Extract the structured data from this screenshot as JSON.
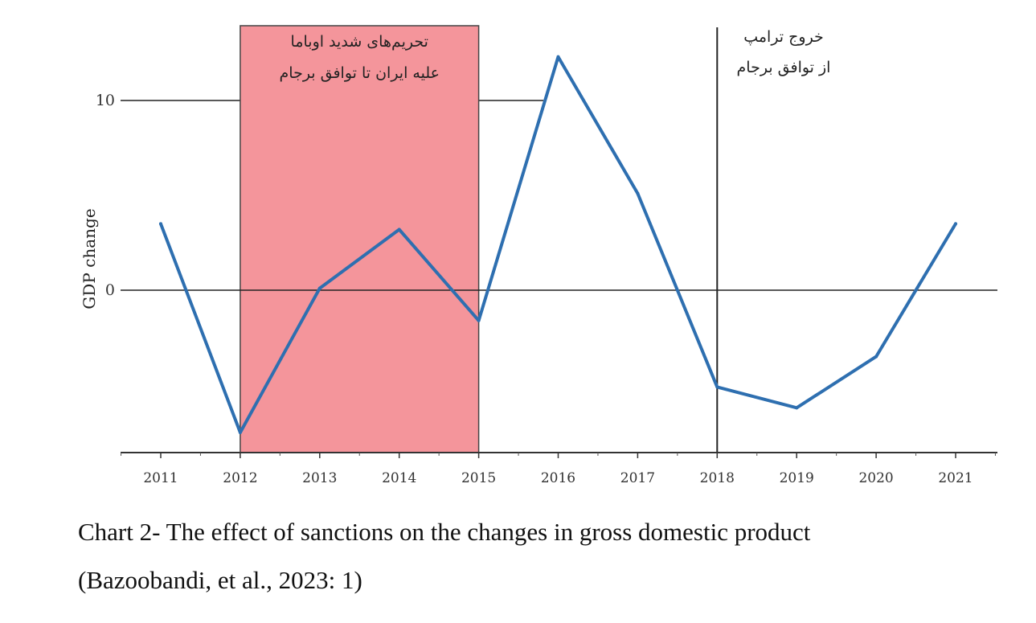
{
  "chart_data": {
    "type": "line",
    "x": [
      2011,
      2012,
      2013,
      2014,
      2015,
      2016,
      2017,
      2018,
      2019,
      2020,
      2021
    ],
    "x_tick_labels": [
      "2011",
      "2012",
      "2013",
      "2014",
      "2015",
      "2016",
      "2017",
      "2018",
      "2019",
      "2020",
      "2021"
    ],
    "values": [
      3.5,
      -7.5,
      0.1,
      3.2,
      -1.6,
      12.3,
      5.1,
      -5.1,
      -6.2,
      -3.5,
      3.5
    ],
    "ylabel": "GDP change",
    "y_ticks": [
      0,
      10
    ],
    "y_tick_labels": [
      "0",
      "10"
    ],
    "ylim": [
      -8.5,
      14.5
    ],
    "xlim": [
      2011,
      2021
    ],
    "grid": false,
    "reference_lines": [
      {
        "axis": "y",
        "value": 0
      },
      {
        "axis": "y",
        "value": 10
      }
    ],
    "annotations": [
      {
        "type": "shaded_span",
        "x_start": 2012,
        "x_end": 2015,
        "color": "#f4959b",
        "lines": [
          "تحریم‌های شدید اوباما",
          "علیه ایران تا توافق برجام"
        ]
      },
      {
        "type": "vertical_line",
        "x": 2018,
        "lines": [
          "خروج ترامپ",
          "از توافق برجام"
        ]
      }
    ],
    "line_color": "#2e6fb0"
  },
  "caption": {
    "line1": "Chart 2- The effect of sanctions on the changes in gross domestic product",
    "line2": "(Bazoobandi, et al., 2023: 1)"
  }
}
